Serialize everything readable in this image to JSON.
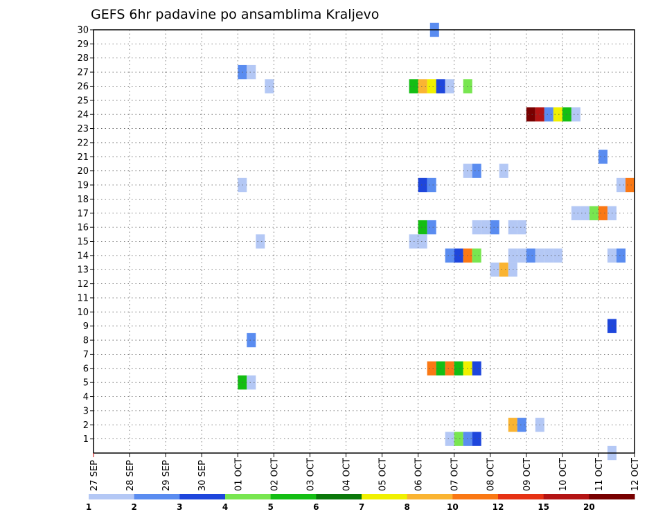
{
  "chart_data": {
    "type": "heatmap",
    "title": "GEFS 6hr padavine po ansamblima Kraljevo",
    "xlabel": "",
    "ylabel": "",
    "x_tick_labels": [
      "27 SEP",
      "28 SEP",
      "29 SEP",
      "30 SEP",
      "01 OCT",
      "02 OCT",
      "03 OCT",
      "04 OCT",
      "05 OCT",
      "06 OCT",
      "07 OCT",
      "08 OCT",
      "09 OCT",
      "10 OCT",
      "11 OCT",
      "12 OCT"
    ],
    "y_tick_labels": [
      "1",
      "2",
      "3",
      "4",
      "5",
      "6",
      "7",
      "8",
      "9",
      "10",
      "11",
      "12",
      "13",
      "14",
      "15",
      "16",
      "17",
      "18",
      "19",
      "20",
      "21",
      "22",
      "23",
      "24",
      "25",
      "26",
      "27",
      "28",
      "29",
      "30"
    ],
    "xlim": [
      0,
      15
    ],
    "ylim": [
      0,
      30
    ],
    "grid": true,
    "colorbar": {
      "labels": [
        "1",
        "2",
        "3",
        "4",
        "5",
        "6",
        "7",
        "8",
        "10",
        "12",
        "15",
        "20"
      ],
      "colors": [
        "#b4c8f5",
        "#5a8cf0",
        "#1e46dc",
        "#78e650",
        "#14be14",
        "#0a780a",
        "#f0f000",
        "#fab432",
        "#fa7814",
        "#e63214",
        "#b41414",
        "#780000"
      ]
    },
    "cells": [
      {
        "member": 30,
        "day": 9.33,
        "level": 2
      },
      {
        "member": 27,
        "day": 4.0,
        "level": 2
      },
      {
        "member": 27,
        "day": 4.25,
        "level": 1
      },
      {
        "member": 26,
        "day": 4.75,
        "level": 1
      },
      {
        "member": 26,
        "day": 8.75,
        "level": 5
      },
      {
        "member": 26,
        "day": 9.0,
        "level": 8
      },
      {
        "member": 26,
        "day": 9.25,
        "level": 7
      },
      {
        "member": 26,
        "day": 9.5,
        "level": 3
      },
      {
        "member": 26,
        "day": 9.75,
        "level": 1
      },
      {
        "member": 26,
        "day": 10.25,
        "level": 4
      },
      {
        "member": 24,
        "day": 12.0,
        "level": 12
      },
      {
        "member": 24,
        "day": 12.25,
        "level": 11
      },
      {
        "member": 24,
        "day": 12.5,
        "level": 2
      },
      {
        "member": 24,
        "day": 12.75,
        "level": 7
      },
      {
        "member": 24,
        "day": 13.0,
        "level": 5
      },
      {
        "member": 24,
        "day": 13.25,
        "level": 1
      },
      {
        "member": 21,
        "day": 14.0,
        "level": 2
      },
      {
        "member": 20,
        "day": 10.25,
        "level": 1
      },
      {
        "member": 20,
        "day": 10.5,
        "level": 2
      },
      {
        "member": 20,
        "day": 11.25,
        "level": 1
      },
      {
        "member": 19,
        "day": 4.0,
        "level": 1
      },
      {
        "member": 19,
        "day": 9.0,
        "level": 3
      },
      {
        "member": 19,
        "day": 9.25,
        "level": 2
      },
      {
        "member": 19,
        "day": 14.5,
        "level": 1
      },
      {
        "member": 19,
        "day": 14.75,
        "level": 9
      },
      {
        "member": 17,
        "day": 13.25,
        "level": 1
      },
      {
        "member": 17,
        "day": 13.5,
        "level": 1
      },
      {
        "member": 17,
        "day": 13.75,
        "level": 4
      },
      {
        "member": 17,
        "day": 14.0,
        "level": 9
      },
      {
        "member": 17,
        "day": 14.25,
        "level": 1
      },
      {
        "member": 16,
        "day": 9.0,
        "level": 5
      },
      {
        "member": 16,
        "day": 9.25,
        "level": 2
      },
      {
        "member": 16,
        "day": 10.5,
        "level": 1
      },
      {
        "member": 16,
        "day": 10.75,
        "level": 1
      },
      {
        "member": 16,
        "day": 11.0,
        "level": 2
      },
      {
        "member": 16,
        "day": 11.5,
        "level": 1
      },
      {
        "member": 16,
        "day": 11.75,
        "level": 1
      },
      {
        "member": 15,
        "day": 4.5,
        "level": 1
      },
      {
        "member": 15,
        "day": 8.75,
        "level": 1
      },
      {
        "member": 15,
        "day": 9.0,
        "level": 1
      },
      {
        "member": 14,
        "day": 9.75,
        "level": 2
      },
      {
        "member": 14,
        "day": 10.0,
        "level": 3
      },
      {
        "member": 14,
        "day": 10.25,
        "level": 9
      },
      {
        "member": 14,
        "day": 10.5,
        "level": 4
      },
      {
        "member": 14,
        "day": 11.5,
        "level": 1
      },
      {
        "member": 14,
        "day": 11.75,
        "level": 1
      },
      {
        "member": 14,
        "day": 12.0,
        "level": 2
      },
      {
        "member": 14,
        "day": 12.25,
        "level": 1
      },
      {
        "member": 14,
        "day": 12.5,
        "level": 1
      },
      {
        "member": 14,
        "day": 12.75,
        "level": 1
      },
      {
        "member": 14,
        "day": 14.25,
        "level": 1
      },
      {
        "member": 14,
        "day": 14.5,
        "level": 2
      },
      {
        "member": 13,
        "day": 11.0,
        "level": 1
      },
      {
        "member": 13,
        "day": 11.25,
        "level": 8
      },
      {
        "member": 13,
        "day": 11.5,
        "level": 1
      },
      {
        "member": 9,
        "day": 14.25,
        "level": 3
      },
      {
        "member": 8,
        "day": 4.25,
        "level": 2
      },
      {
        "member": 6,
        "day": 9.25,
        "level": 9
      },
      {
        "member": 6,
        "day": 9.5,
        "level": 5
      },
      {
        "member": 6,
        "day": 9.75,
        "level": 9
      },
      {
        "member": 6,
        "day": 10.0,
        "level": 5
      },
      {
        "member": 6,
        "day": 10.25,
        "level": 7
      },
      {
        "member": 6,
        "day": 10.5,
        "level": 3
      },
      {
        "member": 5,
        "day": 4.0,
        "level": 5
      },
      {
        "member": 5,
        "day": 4.25,
        "level": 1
      },
      {
        "member": 2,
        "day": 11.5,
        "level": 8
      },
      {
        "member": 2,
        "day": 11.75,
        "level": 2
      },
      {
        "member": 2,
        "day": 12.25,
        "level": 1
      },
      {
        "member": 1,
        "day": 9.75,
        "level": 1
      },
      {
        "member": 1,
        "day": 10.0,
        "level": 4
      },
      {
        "member": 1,
        "day": 10.25,
        "level": 2
      },
      {
        "member": 1,
        "day": 10.5,
        "level": 3
      },
      {
        "member": 0,
        "day": 14.25,
        "level": 1
      }
    ]
  }
}
